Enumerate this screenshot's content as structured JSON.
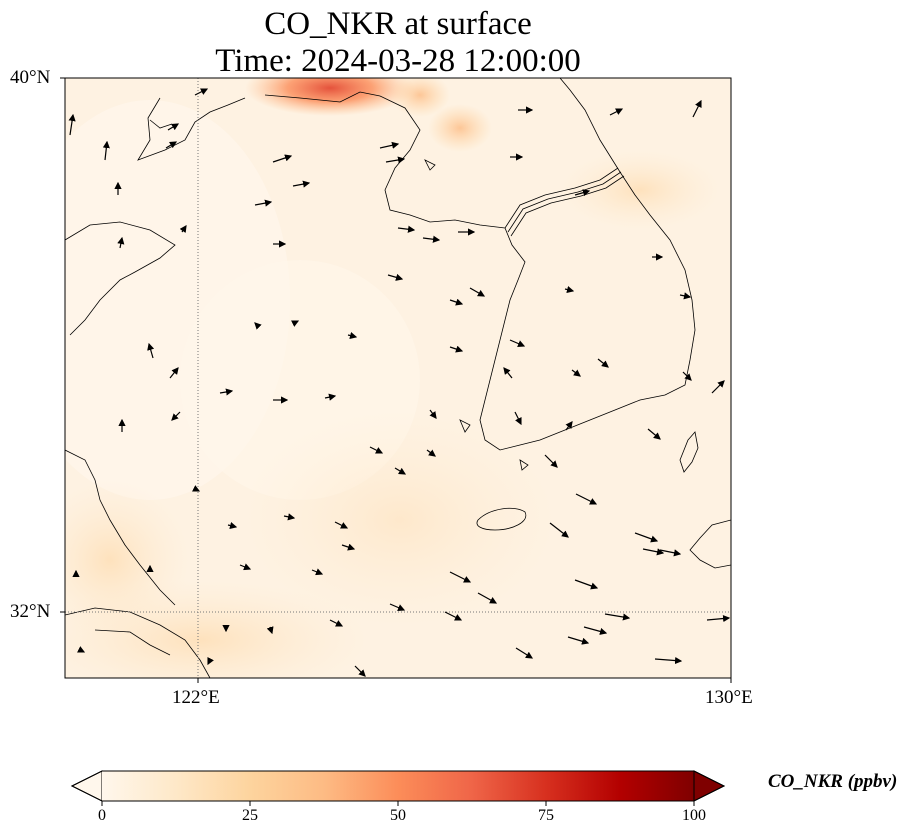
{
  "title": {
    "line1": "CO_NKR at surface",
    "line2": "Time: 2024-03-28 12:00:00"
  },
  "map": {
    "lat_labels": [
      "40°N",
      "32°N"
    ],
    "lon_labels": [
      "122°E",
      "130°E"
    ],
    "extent": {
      "lon_min": 120,
      "lon_max": 130,
      "lat_min": 31,
      "lat_max": 40
    },
    "gridlines": "dotted",
    "field": "CO_NKR",
    "units": "ppbv",
    "colormap": "OrRd"
  },
  "colorbar": {
    "title": "CO_NKR (ppbv)",
    "ticks": [
      "0",
      "25",
      "50",
      "75",
      "100"
    ],
    "min": 0,
    "max": 100,
    "extend": "both",
    "colors": [
      "#fff7ec",
      "#fee8c8",
      "#fdd49e",
      "#fdbb84",
      "#fc8d59",
      "#ef6548",
      "#d7301f",
      "#b30000",
      "#7f0000"
    ]
  }
}
